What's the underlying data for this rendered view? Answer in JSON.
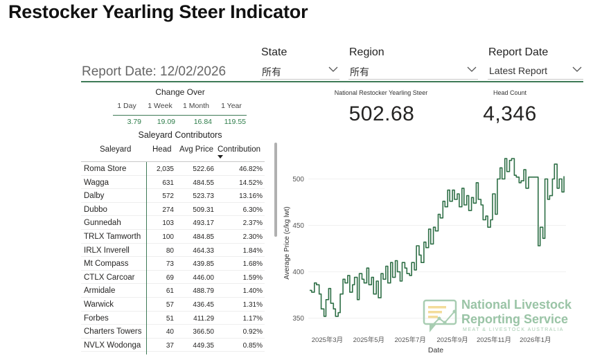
{
  "title": "Restocker Yearling Steer Indicator",
  "filters": {
    "state": {
      "label": "State",
      "value": "所有"
    },
    "region": {
      "label": "Region",
      "value": "所有"
    },
    "report_date": {
      "label": "Report Date",
      "value": "Latest Report"
    }
  },
  "report_date_text": "Report Date: 12/02/2026",
  "change_over": {
    "title": "Change Over",
    "headers": [
      "1 Day",
      "1 Week",
      "1 Month",
      "1 Year"
    ],
    "values": [
      "3.79",
      "19.09",
      "16.84",
      "119.55"
    ]
  },
  "contributors": {
    "title": "Saleyard Contributors",
    "columns": [
      "Saleyard",
      "Head",
      "Avg Price",
      "Contribution"
    ],
    "rows": [
      [
        "Roma Store",
        "2,035",
        "522.66",
        "46.82%"
      ],
      [
        "Wagga",
        "631",
        "484.55",
        "14.52%"
      ],
      [
        "Dalby",
        "572",
        "523.73",
        "13.16%"
      ],
      [
        "Dubbo",
        "274",
        "509.31",
        "6.30%"
      ],
      [
        "Gunnedah",
        "103",
        "493.17",
        "2.37%"
      ],
      [
        "TRLX Tamworth",
        "100",
        "484.85",
        "2.30%"
      ],
      [
        "IRLX Inverell",
        "80",
        "464.33",
        "1.84%"
      ],
      [
        "Mt Compass",
        "73",
        "439.85",
        "1.68%"
      ],
      [
        "CTLX Carcoar",
        "69",
        "446.00",
        "1.59%"
      ],
      [
        "Armidale",
        "61",
        "488.79",
        "1.40%"
      ],
      [
        "Warwick",
        "57",
        "436.45",
        "1.31%"
      ],
      [
        "Forbes",
        "51",
        "411.29",
        "1.17%"
      ],
      [
        "Charters Towers",
        "40",
        "366.50",
        "0.92%"
      ],
      [
        "NVLX Wodonga",
        "37",
        "449.35",
        "0.85%"
      ]
    ]
  },
  "kpis": {
    "indicator_label": "National Restocker Yearling Steer",
    "indicator_value": "502.68",
    "head_label": "Head Count",
    "head_value": "4,346"
  },
  "chart_data": {
    "type": "line",
    "xlabel": "Date",
    "ylabel": "Average Price (c/kg lwt)",
    "ylim": [
      340,
      525
    ],
    "y_ticks": [
      350,
      400,
      450,
      500
    ],
    "x_ticks": [
      "2025年3月",
      "2025年5月",
      "2025年7月",
      "2025年9月",
      "2025年11月",
      "2026年1月"
    ],
    "x_tick_dates": [
      "2025-03-01",
      "2025-05-01",
      "2025-07-01",
      "2025-09-01",
      "2025-11-01",
      "2026-01-01"
    ],
    "grid": true,
    "legend": false,
    "color": "#2d6e45",
    "series": [
      {
        "x": [
          "2025-02-03",
          "2025-02-06",
          "2025-02-10",
          "2025-02-13",
          "2025-02-17",
          "2025-02-20",
          "2025-02-24",
          "2025-02-27",
          "2025-03-03",
          "2025-03-06",
          "2025-03-10",
          "2025-03-13",
          "2025-03-17",
          "2025-03-20",
          "2025-03-24",
          "2025-03-27",
          "2025-03-31",
          "2025-04-03",
          "2025-04-07",
          "2025-04-10",
          "2025-04-14",
          "2025-04-17",
          "2025-04-21",
          "2025-04-24",
          "2025-04-28",
          "2025-05-01",
          "2025-05-05",
          "2025-05-08",
          "2025-05-12",
          "2025-05-15",
          "2025-05-19",
          "2025-05-22",
          "2025-05-26",
          "2025-05-29",
          "2025-06-02",
          "2025-06-05",
          "2025-06-09",
          "2025-06-12",
          "2025-06-16",
          "2025-06-19",
          "2025-06-23",
          "2025-06-26",
          "2025-06-30",
          "2025-07-03",
          "2025-07-07",
          "2025-07-10",
          "2025-07-14",
          "2025-07-17",
          "2025-07-21",
          "2025-07-24",
          "2025-07-28",
          "2025-07-31",
          "2025-08-04",
          "2025-08-07",
          "2025-08-11",
          "2025-08-14",
          "2025-08-18",
          "2025-08-21",
          "2025-08-25",
          "2025-08-28",
          "2025-09-01",
          "2025-09-04",
          "2025-09-08",
          "2025-09-11",
          "2025-09-15",
          "2025-09-18",
          "2025-09-22",
          "2025-09-25",
          "2025-09-29",
          "2025-10-02",
          "2025-10-06",
          "2025-10-09",
          "2025-10-13",
          "2025-10-16",
          "2025-10-20",
          "2025-10-23",
          "2025-10-27",
          "2025-10-30",
          "2025-11-03",
          "2025-11-06",
          "2025-11-10",
          "2025-11-13",
          "2025-11-17",
          "2025-11-20",
          "2025-11-24",
          "2025-11-27",
          "2025-12-01",
          "2025-12-04",
          "2025-12-08",
          "2025-12-11",
          "2025-12-15",
          "2025-12-18",
          "2025-12-22",
          "2026-01-05",
          "2026-01-08",
          "2026-01-12",
          "2026-01-15",
          "2026-01-19",
          "2026-01-22",
          "2026-01-26",
          "2026-01-29",
          "2026-02-02",
          "2026-02-05",
          "2026-02-09",
          "2026-02-12"
        ],
        "y": [
          380,
          378,
          388,
          386,
          376,
          360,
          352,
          370,
          382,
          366,
          360,
          352,
          356,
          376,
          392,
          388,
          396,
          378,
          386,
          394,
          370,
          398,
          392,
          388,
          404,
          386,
          394,
          376,
          390,
          372,
          398,
          392,
          406,
          388,
          410,
          394,
          412,
          400,
          390,
          410,
          404,
          398,
          396,
          410,
          402,
          428,
          418,
          410,
          432,
          426,
          446,
          430,
          448,
          444,
          462,
          458,
          476,
          470,
          488,
          476,
          488,
          478,
          484,
          470,
          490,
          472,
          482,
          466,
          480,
          474,
          496,
          478,
          472,
          456,
          460,
          448,
          456,
          484,
          462,
          500,
          512,
          500,
          522,
          508,
          520,
          522,
          504,
          502,
          496,
          498,
          510,
          490,
          502,
          428,
          448,
          436,
          500,
          478,
          482,
          500,
          516,
          490,
          500,
          486,
          503
        ]
      }
    ]
  }
}
